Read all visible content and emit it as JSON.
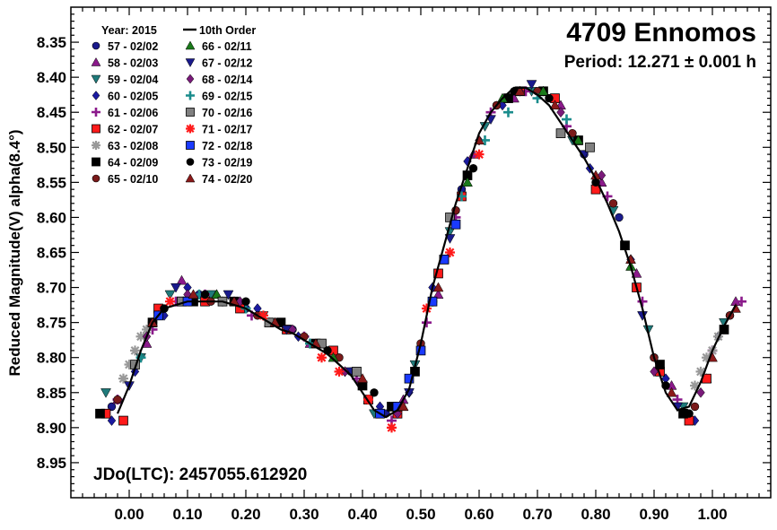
{
  "chart_data": {
    "type": "scatter",
    "title": "4709 Ennomos",
    "subtitle": "Period: 12.271 ± 0.001 h",
    "ylabel": "Reduced Magnitude(V) alpha(8.4°)",
    "xlabel": "",
    "annotation": "JDo(LTC): 2457055.612920",
    "xlim": [
      -0.1,
      1.1
    ],
    "ylim": [
      8.3,
      9.0
    ],
    "y_inverted": true,
    "x_ticks": [
      "0.00",
      "0.10",
      "0.20",
      "0.30",
      "0.40",
      "0.50",
      "0.60",
      "0.70",
      "0.80",
      "0.90",
      "1.00"
    ],
    "y_ticks": [
      "8.35",
      "8.40",
      "8.45",
      "8.50",
      "8.55",
      "8.60",
      "8.65",
      "8.70",
      "8.75",
      "8.80",
      "8.85",
      "8.90",
      "8.95"
    ],
    "legend_header": "Year: 2015",
    "legend_placement": "top-left",
    "grid": false,
    "fit": {
      "name": "10th Order",
      "color": "#000000",
      "points": [
        [
          -0.02,
          8.88
        ],
        [
          0.0,
          8.84
        ],
        [
          0.02,
          8.79
        ],
        [
          0.04,
          8.75
        ],
        [
          0.06,
          8.73
        ],
        [
          0.08,
          8.725
        ],
        [
          0.1,
          8.72
        ],
        [
          0.12,
          8.72
        ],
        [
          0.14,
          8.72
        ],
        [
          0.16,
          8.72
        ],
        [
          0.18,
          8.725
        ],
        [
          0.2,
          8.73
        ],
        [
          0.22,
          8.74
        ],
        [
          0.24,
          8.75
        ],
        [
          0.26,
          8.76
        ],
        [
          0.28,
          8.765
        ],
        [
          0.3,
          8.775
        ],
        [
          0.32,
          8.785
        ],
        [
          0.34,
          8.795
        ],
        [
          0.36,
          8.81
        ],
        [
          0.38,
          8.825
        ],
        [
          0.4,
          8.85
        ],
        [
          0.42,
          8.875
        ],
        [
          0.44,
          8.885
        ],
        [
          0.46,
          8.875
        ],
        [
          0.48,
          8.845
        ],
        [
          0.5,
          8.78
        ],
        [
          0.52,
          8.7
        ],
        [
          0.54,
          8.64
        ],
        [
          0.56,
          8.58
        ],
        [
          0.58,
          8.53
        ],
        [
          0.6,
          8.48
        ],
        [
          0.62,
          8.45
        ],
        [
          0.64,
          8.43
        ],
        [
          0.66,
          8.415
        ],
        [
          0.68,
          8.415
        ],
        [
          0.7,
          8.425
        ],
        [
          0.72,
          8.44
        ],
        [
          0.74,
          8.465
        ],
        [
          0.76,
          8.49
        ],
        [
          0.78,
          8.515
        ],
        [
          0.8,
          8.545
        ],
        [
          0.82,
          8.58
        ],
        [
          0.84,
          8.62
        ],
        [
          0.86,
          8.67
        ],
        [
          0.88,
          8.73
        ],
        [
          0.9,
          8.8
        ],
        [
          0.92,
          8.85
        ],
        [
          0.94,
          8.875
        ],
        [
          0.96,
          8.87
        ],
        [
          0.98,
          8.835
        ],
        [
          1.0,
          8.79
        ],
        [
          1.02,
          8.755
        ],
        [
          1.04,
          8.725
        ]
      ]
    },
    "series": [
      {
        "name": "57 - 02/02",
        "color": "#1a1a8c",
        "marker": "circle",
        "x": [
          -0.03,
          0.05,
          0.12,
          0.2,
          0.28,
          0.33,
          0.38,
          0.44,
          0.5,
          0.57,
          0.63,
          0.7,
          0.78,
          0.84,
          0.9,
          0.96,
          1.03
        ],
        "y": [
          8.87,
          8.74,
          8.71,
          8.73,
          8.76,
          8.78,
          8.82,
          8.88,
          8.79,
          8.56,
          8.44,
          8.42,
          8.51,
          8.6,
          8.8,
          8.88,
          8.74
        ]
      },
      {
        "name": "58 - 02/03",
        "color": "#8b1a8b",
        "marker": "triangle-up",
        "x": [
          -0.02,
          0.03,
          0.09,
          0.15,
          0.24,
          0.31,
          0.41,
          0.47,
          0.53,
          0.59,
          0.66,
          0.74,
          0.81,
          0.87,
          0.93,
          0.99,
          1.04
        ],
        "y": [
          8.86,
          8.78,
          8.69,
          8.71,
          8.75,
          8.78,
          8.86,
          8.86,
          8.71,
          8.51,
          8.43,
          8.44,
          8.55,
          8.68,
          8.84,
          8.83,
          8.72
        ]
      },
      {
        "name": "59 - 02/04",
        "color": "#1f7a7a",
        "marker": "triangle-down",
        "x": [
          -0.04,
          0.02,
          0.07,
          0.14,
          0.23,
          0.34,
          0.42,
          0.49,
          0.55,
          0.61,
          0.69,
          0.76,
          0.83,
          0.89,
          0.95,
          1.02
        ],
        "y": [
          8.85,
          8.8,
          8.71,
          8.71,
          8.74,
          8.79,
          8.88,
          8.81,
          8.62,
          8.47,
          8.42,
          8.49,
          8.59,
          8.76,
          8.87,
          8.75
        ]
      },
      {
        "name": "60 - 02/05",
        "color": "#1a1aa0",
        "marker": "diamond",
        "x": [
          -0.03,
          0.01,
          0.06,
          0.1,
          0.16,
          0.22,
          0.29,
          0.37,
          0.43,
          0.48,
          0.52,
          0.58,
          0.64,
          0.71,
          0.79,
          0.86,
          0.92,
          0.97,
          1.01
        ],
        "y": [
          8.89,
          8.82,
          8.74,
          8.7,
          8.72,
          8.73,
          8.77,
          8.82,
          8.87,
          8.85,
          8.7,
          8.52,
          8.44,
          8.42,
          8.53,
          8.66,
          8.83,
          8.89,
          8.77
        ]
      },
      {
        "name": "61 - 02/06",
        "color": "#8b1a8b",
        "marker": "plus",
        "x": [
          -0.02,
          0.04,
          0.08,
          0.13,
          0.21,
          0.3,
          0.39,
          0.45,
          0.51,
          0.56,
          0.62,
          0.68,
          0.75,
          0.82,
          0.88,
          0.94,
          1.0,
          1.05
        ],
        "y": [
          8.86,
          8.76,
          8.72,
          8.71,
          8.74,
          8.77,
          8.83,
          8.89,
          8.75,
          8.6,
          8.45,
          8.42,
          8.47,
          8.57,
          8.72,
          8.86,
          8.79,
          8.72
        ]
      },
      {
        "name": "62 - 02/07",
        "color": "#ff1a1a",
        "marker": "square",
        "x": [
          -0.04,
          -0.01,
          0.05,
          0.09,
          0.13,
          0.19,
          0.27,
          0.35,
          0.41,
          0.46,
          0.53,
          0.57,
          0.67,
          0.73,
          0.8,
          0.87,
          0.91,
          0.96,
          0.99
        ],
        "y": [
          8.88,
          8.89,
          8.73,
          8.72,
          8.72,
          8.73,
          8.76,
          8.79,
          8.86,
          8.88,
          8.68,
          8.57,
          8.42,
          8.43,
          8.56,
          8.7,
          8.82,
          8.89,
          8.83
        ]
      },
      {
        "name": "63 - 02/08",
        "color": "#999999",
        "marker": "star",
        "x": [
          -0.01,
          0.0,
          0.01,
          0.02,
          0.03,
          0.04,
          0.97,
          0.98,
          0.99,
          1.0,
          1.01
        ],
        "y": [
          8.83,
          8.81,
          8.79,
          8.77,
          8.76,
          8.75,
          8.84,
          8.82,
          8.8,
          8.79,
          8.77
        ]
      },
      {
        "name": "64 - 02/09",
        "color": "#000000",
        "marker": "square",
        "x": [
          -0.05,
          0.04,
          0.11,
          0.18,
          0.26,
          0.32,
          0.4,
          0.45,
          0.49,
          0.54,
          0.58,
          0.65,
          0.71,
          0.77,
          0.85,
          0.91,
          0.95,
          1.02
        ],
        "y": [
          8.88,
          8.75,
          8.72,
          8.72,
          8.75,
          8.78,
          8.84,
          8.87,
          8.82,
          8.66,
          8.54,
          8.43,
          8.42,
          8.49,
          8.64,
          8.81,
          8.88,
          8.76
        ]
      },
      {
        "name": "65 - 02/10",
        "color": "#7a1a1a",
        "marker": "circle",
        "x": [
          -0.02,
          0.06,
          0.14,
          0.22,
          0.3,
          0.36,
          0.43,
          0.5,
          0.56,
          0.63,
          0.7,
          0.76,
          0.83,
          0.9,
          0.97,
          1.03
        ],
        "y": [
          8.86,
          8.73,
          8.72,
          8.74,
          8.77,
          8.8,
          8.88,
          8.78,
          8.59,
          8.44,
          8.42,
          8.48,
          8.58,
          8.8,
          8.87,
          8.74
        ]
      },
      {
        "name": "66 - 02/11",
        "color": "#1a7a1a",
        "marker": "triangle-up",
        "x": [
          0.05,
          0.15,
          0.25,
          0.35,
          0.47,
          0.58,
          0.64,
          0.71,
          0.77,
          0.86
        ],
        "y": [
          8.74,
          8.71,
          8.75,
          8.8,
          8.87,
          8.55,
          8.43,
          8.42,
          8.49,
          8.67
        ]
      },
      {
        "name": "67 - 02/12",
        "color": "#1a1a8c",
        "marker": "triangle-down",
        "x": [
          0.0,
          0.08,
          0.17,
          0.27,
          0.38,
          0.48,
          0.55,
          0.62,
          0.69,
          0.78,
          0.88,
          0.94
        ],
        "y": [
          8.84,
          8.7,
          8.71,
          8.76,
          8.82,
          8.85,
          8.63,
          8.46,
          8.41,
          8.51,
          8.74,
          8.87
        ]
      },
      {
        "name": "68 - 02/14",
        "color": "#7a1a7a",
        "marker": "diamond",
        "x": [
          0.03,
          0.1,
          0.19,
          0.28,
          0.37,
          0.46,
          0.6,
          0.67,
          0.74,
          0.81,
          0.9,
          0.98
        ],
        "y": [
          8.77,
          8.71,
          8.72,
          8.76,
          8.82,
          8.88,
          8.49,
          8.42,
          8.45,
          8.54,
          8.82,
          8.85
        ]
      },
      {
        "name": "69 - 02/15",
        "color": "#1a8c8c",
        "marker": "plus",
        "x": [
          0.02,
          0.12,
          0.2,
          0.31,
          0.52,
          0.57,
          0.61,
          0.65,
          0.7,
          0.75
        ],
        "y": [
          8.8,
          8.71,
          8.73,
          8.78,
          8.72,
          8.57,
          8.49,
          8.45,
          8.43,
          8.46
        ]
      },
      {
        "name": "70 - 02/16",
        "color": "#808080",
        "marker": "square",
        "x": [
          0.01,
          0.09,
          0.16,
          0.24,
          0.33,
          0.39,
          0.55,
          0.74,
          0.79
        ],
        "y": [
          8.81,
          8.72,
          8.72,
          8.75,
          8.78,
          8.82,
          8.6,
          8.48,
          8.5
        ]
      },
      {
        "name": "71 - 02/17",
        "color": "#ff1a1a",
        "marker": "star",
        "x": [
          0.07,
          0.23,
          0.33,
          0.36,
          0.41,
          0.45,
          0.51,
          0.55,
          0.6
        ],
        "y": [
          8.72,
          8.74,
          8.8,
          8.82,
          8.86,
          8.9,
          8.73,
          8.65,
          8.51
        ]
      },
      {
        "name": "72 - 02/18",
        "color": "#1a3aff",
        "marker": "square",
        "x": [
          0.05,
          0.1,
          0.43,
          0.46,
          0.48,
          0.5,
          0.52,
          0.54,
          0.56
        ],
        "y": [
          8.74,
          8.72,
          8.88,
          8.87,
          8.83,
          8.79,
          8.72,
          8.66,
          8.61
        ]
      },
      {
        "name": "73 - 02/19",
        "color": "#000000",
        "marker": "circle",
        "x": [
          0.06,
          0.13,
          0.2,
          0.26,
          0.34,
          0.42,
          0.59,
          0.66,
          0.72,
          0.8,
          0.92,
          0.96
        ],
        "y": [
          8.73,
          8.71,
          8.72,
          8.75,
          8.79,
          8.85,
          8.53,
          8.42,
          8.43,
          8.55,
          8.84,
          8.88
        ]
      },
      {
        "name": "74 - 02/20",
        "color": "#8b1a1a",
        "marker": "triangle-up",
        "x": [
          0.04,
          0.11,
          0.18,
          0.25,
          0.32,
          0.4,
          0.47,
          0.53,
          0.6,
          0.67,
          0.73,
          0.8,
          0.86,
          0.93,
          1.0,
          1.04
        ],
        "y": [
          8.75,
          8.71,
          8.72,
          8.75,
          8.78,
          8.83,
          8.87,
          8.7,
          8.49,
          8.42,
          8.44,
          8.54,
          8.66,
          8.85,
          8.8,
          8.73
        ]
      }
    ]
  }
}
